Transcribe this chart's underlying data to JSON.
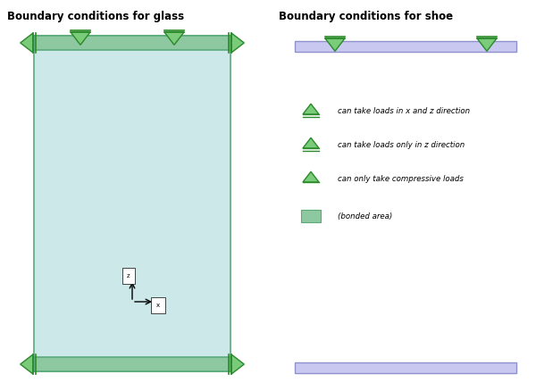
{
  "title_left": "Boundary conditions for glass",
  "title_right": "Boundary conditions for shoe",
  "glass_color": "#cce8e8",
  "glass_border_color": "#5aaa7a",
  "glass_strip_color": "#8ec8a0",
  "shoe_color": "#c8c8f0",
  "shoe_border_color": "#9090cc",
  "triangle_color": "#2a8a2a",
  "triangle_fill": "#7acc7a",
  "legend_texts": [
    "can take loads in x and z direction",
    "can take loads only in z direction",
    "can only take compressive loads",
    "(bonded area)"
  ],
  "background_color": "#ffffff"
}
